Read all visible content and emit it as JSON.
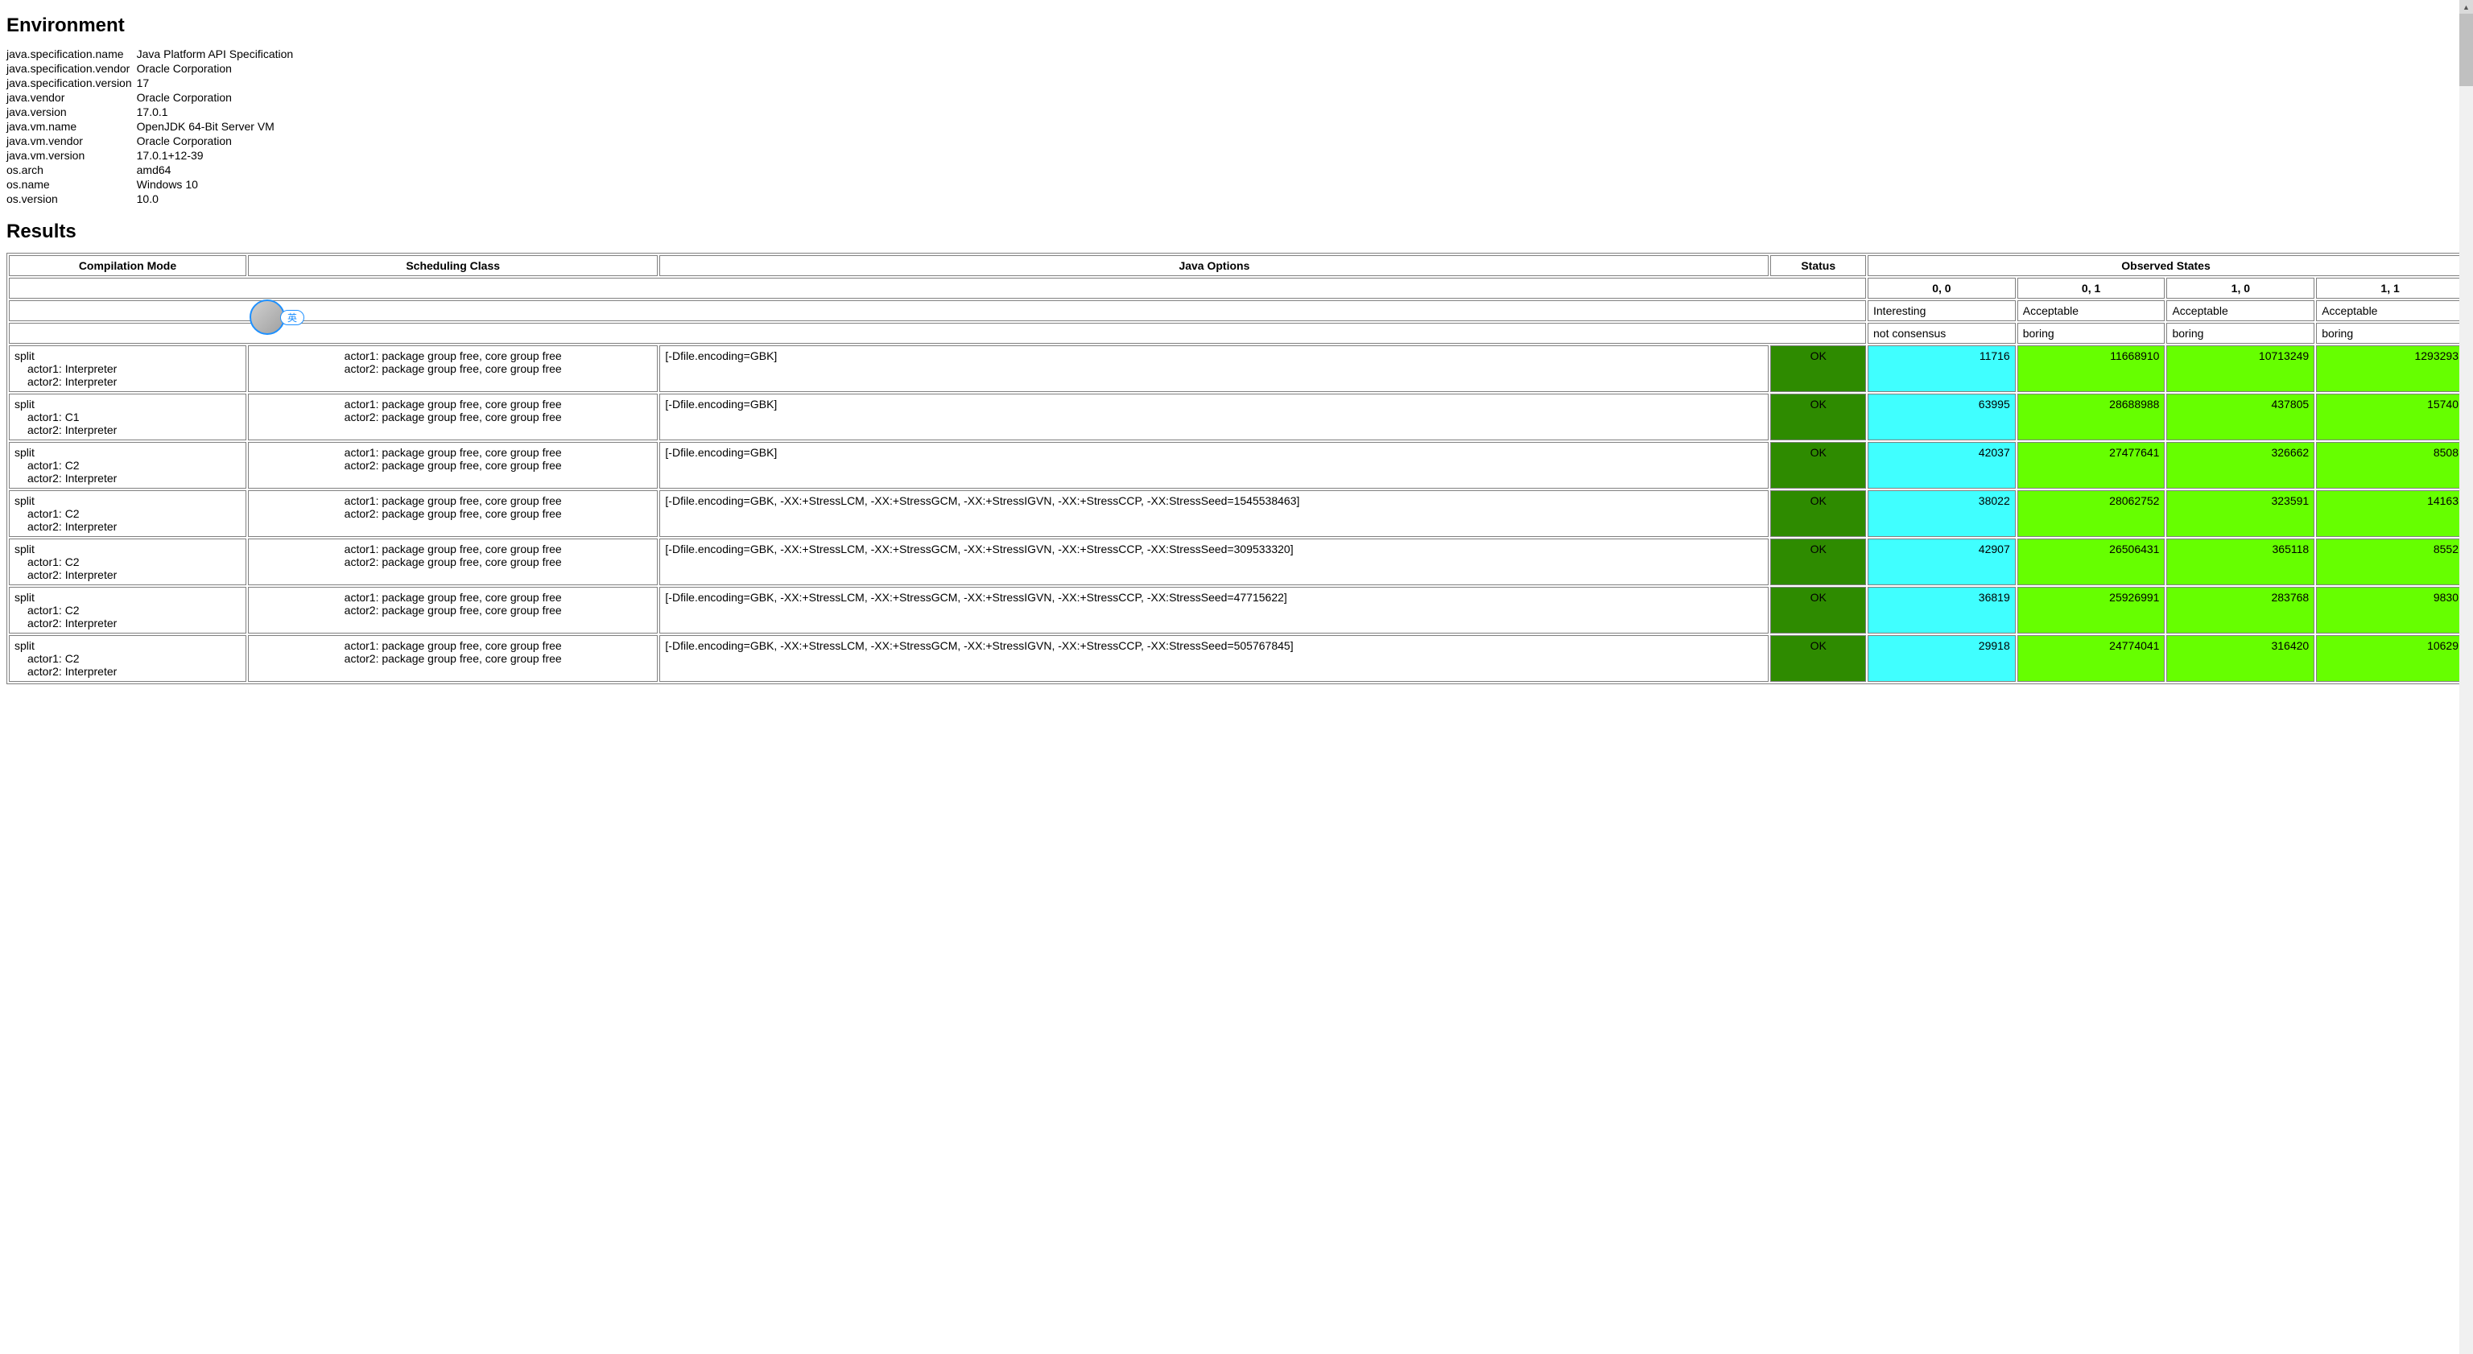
{
  "headings": {
    "environment": "Environment",
    "results": "Results"
  },
  "environment": [
    {
      "key": "java.specification.name",
      "value": "Java Platform API Specification"
    },
    {
      "key": "java.specification.vendor",
      "value": "Oracle Corporation"
    },
    {
      "key": "java.specification.version",
      "value": "17"
    },
    {
      "key": "java.vendor",
      "value": "Oracle Corporation"
    },
    {
      "key": "java.version",
      "value": "17.0.1"
    },
    {
      "key": "java.vm.name",
      "value": "OpenJDK 64-Bit Server VM"
    },
    {
      "key": "java.vm.vendor",
      "value": "Oracle Corporation"
    },
    {
      "key": "java.vm.version",
      "value": "17.0.1+12-39"
    },
    {
      "key": "os.arch",
      "value": "amd64"
    },
    {
      "key": "os.name",
      "value": "Windows 10"
    },
    {
      "key": "os.version",
      "value": "10.0"
    }
  ],
  "columns": {
    "compilation": "Compilation Mode",
    "scheduling": "Scheduling Class",
    "options": "Java Options",
    "status": "Status",
    "observed": "Observed States"
  },
  "state_headers": [
    "0, 0",
    "0, 1",
    "1, 0",
    "1, 1"
  ],
  "state_classes": [
    "Interesting",
    "Acceptable",
    "Acceptable",
    "Acceptable"
  ],
  "state_notes": [
    "not consensus",
    "boring",
    "boring",
    "boring"
  ],
  "state_colors": {
    "Interesting": "#40ffff",
    "Acceptable": "#66ff00"
  },
  "status_color": "#2e8b00",
  "rows": [
    {
      "compilation": {
        "main": "split",
        "actor1": "actor1: Interpreter",
        "actor2": "actor2: Interpreter"
      },
      "scheduling": {
        "line1": "actor1: package group free, core group free",
        "line2": "actor2: package group free, core group free"
      },
      "options": "[-Dfile.encoding=GBK]",
      "status": "OK",
      "states": [
        "11716",
        "11668910",
        "10713249",
        "1293293"
      ]
    },
    {
      "compilation": {
        "main": "split",
        "actor1": "actor1: C1",
        "actor2": "actor2: Interpreter"
      },
      "scheduling": {
        "line1": "actor1: package group free, core group free",
        "line2": "actor2: package group free, core group free"
      },
      "options": "[-Dfile.encoding=GBK]",
      "status": "OK",
      "states": [
        "63995",
        "28688988",
        "437805",
        "15740"
      ]
    },
    {
      "compilation": {
        "main": "split",
        "actor1": "actor1: C2",
        "actor2": "actor2: Interpreter"
      },
      "scheduling": {
        "line1": "actor1: package group free, core group free",
        "line2": "actor2: package group free, core group free"
      },
      "options": "[-Dfile.encoding=GBK]",
      "status": "OK",
      "states": [
        "42037",
        "27477641",
        "326662",
        "8508"
      ]
    },
    {
      "compilation": {
        "main": "split",
        "actor1": "actor1: C2",
        "actor2": "actor2: Interpreter"
      },
      "scheduling": {
        "line1": "actor1: package group free, core group free",
        "line2": "actor2: package group free, core group free"
      },
      "options": "[-Dfile.encoding=GBK, -XX:+StressLCM, -XX:+StressGCM, -XX:+StressIGVN, -XX:+StressCCP, -XX:StressSeed=1545538463]",
      "status": "OK",
      "states": [
        "38022",
        "28062752",
        "323591",
        "14163"
      ]
    },
    {
      "compilation": {
        "main": "split",
        "actor1": "actor1: C2",
        "actor2": "actor2: Interpreter"
      },
      "scheduling": {
        "line1": "actor1: package group free, core group free",
        "line2": "actor2: package group free, core group free"
      },
      "options": "[-Dfile.encoding=GBK, -XX:+StressLCM, -XX:+StressGCM, -XX:+StressIGVN, -XX:+StressCCP, -XX:StressSeed=309533320]",
      "status": "OK",
      "states": [
        "42907",
        "26506431",
        "365118",
        "8552"
      ]
    },
    {
      "compilation": {
        "main": "split",
        "actor1": "actor1: C2",
        "actor2": "actor2: Interpreter"
      },
      "scheduling": {
        "line1": "actor1: package group free, core group free",
        "line2": "actor2: package group free, core group free"
      },
      "options": "[-Dfile.encoding=GBK, -XX:+StressLCM, -XX:+StressGCM, -XX:+StressIGVN, -XX:+StressCCP, -XX:StressSeed=47715622]",
      "status": "OK",
      "states": [
        "36819",
        "25926991",
        "283768",
        "9830"
      ]
    },
    {
      "compilation": {
        "main": "split",
        "actor1": "actor1: C2",
        "actor2": "actor2: Interpreter"
      },
      "scheduling": {
        "line1": "actor1: package group free, core group free",
        "line2": "actor2: package group free, core group free"
      },
      "options": "[-Dfile.encoding=GBK, -XX:+StressLCM, -XX:+StressGCM, -XX:+StressIGVN, -XX:+StressCCP, -XX:StressSeed=505767845]",
      "status": "OK",
      "states": [
        "29918",
        "24774041",
        "316420",
        "10629"
      ]
    }
  ],
  "floating_badge": {
    "label": "英"
  }
}
